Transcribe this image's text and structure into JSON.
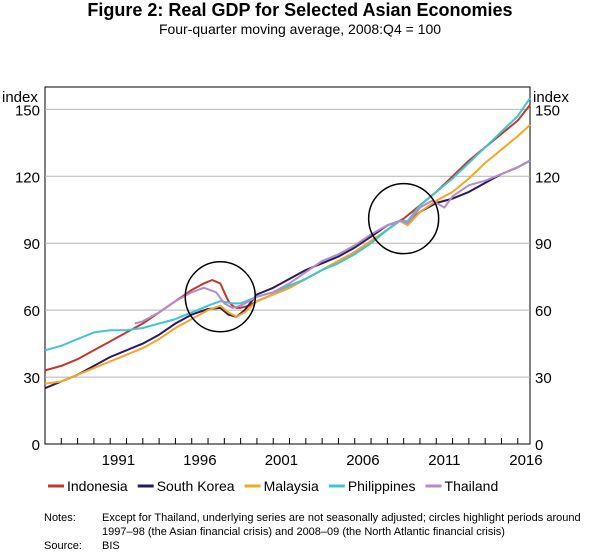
{
  "chart_data": {
    "type": "line",
    "title": "Figure 2: Real GDP for Selected Asian Economies",
    "subtitle": "Four-quarter moving average, 2008:Q4 = 100",
    "ylabel_left": "index",
    "ylabel_right": "index",
    "ylim": [
      0,
      160
    ],
    "y_ticks": [
      0,
      30,
      60,
      90,
      120,
      150
    ],
    "y_tick_labels": [
      "0",
      "30",
      "60",
      "90",
      "120",
      "150"
    ],
    "xlim": [
      1987.0,
      2016.75
    ],
    "x_ticks": [
      1991,
      1996,
      2001,
      2006,
      2011,
      2016
    ],
    "x_tick_labels": [
      "1991",
      "1996",
      "2001",
      "2006",
      "2011",
      "2016"
    ],
    "series": [
      {
        "name": "Indonesia",
        "color": "#c0392b",
        "x": [
          1987.0,
          1988.0,
          1989.0,
          1990.0,
          1991.0,
          1992.0,
          1993.0,
          1994.0,
          1995.0,
          1996.0,
          1996.75,
          1997.25,
          1997.75,
          1998.0,
          1998.25,
          1998.5,
          1998.75,
          1999.0,
          1999.5,
          2000.0,
          2001.0,
          2002.0,
          2003.0,
          2004.0,
          2005.0,
          2006.0,
          2007.0,
          2008.0,
          2008.75,
          2009.0,
          2010.0,
          2011.0,
          2012.0,
          2013.0,
          2014.0,
          2015.0,
          2016.0,
          2016.75
        ],
        "values": [
          33,
          35,
          38,
          42,
          46,
          50,
          54,
          59,
          64,
          69,
          72,
          73.5,
          72,
          68,
          64,
          62,
          61,
          61,
          62,
          64,
          67,
          70,
          74,
          78,
          82,
          86,
          91,
          96,
          100,
          101,
          107,
          113,
          120,
          127,
          133,
          139,
          145,
          152
        ]
      },
      {
        "name": "South Korea",
        "color": "#2c1a5e",
        "x": [
          1987.0,
          1988.0,
          1989.0,
          1990.0,
          1991.0,
          1992.0,
          1993.0,
          1994.0,
          1995.0,
          1996.0,
          1997.0,
          1997.75,
          1998.25,
          1998.75,
          1999.25,
          2000.0,
          2001.0,
          2002.0,
          2003.0,
          2004.0,
          2005.0,
          2006.0,
          2007.0,
          2008.0,
          2008.75,
          2009.25,
          2010.0,
          2011.0,
          2012.0,
          2013.0,
          2014.0,
          2015.0,
          2016.0,
          2016.75
        ],
        "values": [
          25,
          28,
          31,
          35,
          39,
          42,
          45,
          49,
          54,
          58,
          60.5,
          61,
          58,
          57,
          60,
          67,
          70,
          74,
          78,
          81,
          84,
          88,
          93,
          98,
          100,
          99,
          104,
          108,
          110,
          113,
          117,
          121,
          124,
          127
        ]
      },
      {
        "name": "Malaysia",
        "color": "#f5a623",
        "x": [
          1987.0,
          1988.0,
          1989.0,
          1990.0,
          1991.0,
          1992.0,
          1993.0,
          1994.0,
          1995.0,
          1996.0,
          1997.0,
          1997.75,
          1998.25,
          1998.75,
          1999.25,
          2000.0,
          2001.0,
          2002.0,
          2003.0,
          2004.0,
          2005.0,
          2006.0,
          2007.0,
          2008.0,
          2008.75,
          2009.25,
          2010.0,
          2011.0,
          2012.0,
          2013.0,
          2014.0,
          2015.0,
          2016.0,
          2016.75
        ],
        "values": [
          27,
          28,
          31,
          34,
          37,
          40,
          43,
          47,
          52,
          56,
          60,
          62,
          59,
          57,
          59,
          64,
          67,
          70,
          74,
          78,
          82,
          86,
          91,
          96,
          100,
          98,
          104,
          109,
          113,
          119,
          126,
          132,
          138,
          143
        ]
      },
      {
        "name": "Philippines",
        "color": "#3ec6d4",
        "x": [
          1987.0,
          1988.0,
          1989.0,
          1990.0,
          1991.0,
          1992.0,
          1993.0,
          1994.0,
          1995.0,
          1996.0,
          1997.0,
          1997.75,
          1998.5,
          1999.0,
          2000.0,
          2001.0,
          2002.0,
          2003.0,
          2004.0,
          2005.0,
          2006.0,
          2007.0,
          2008.0,
          2008.75,
          2009.25,
          2010.0,
          2011.0,
          2012.0,
          2013.0,
          2014.0,
          2015.0,
          2016.0,
          2016.75
        ],
        "values": [
          42,
          44,
          47,
          50,
          51,
          51,
          52,
          54,
          56,
          59,
          62,
          64,
          63,
          63,
          66,
          68,
          71,
          74,
          78,
          81,
          85,
          90,
          96,
          100,
          100,
          107,
          113,
          119,
          126,
          133,
          140,
          147,
          155
        ]
      },
      {
        "name": "Thailand",
        "color": "#b48cc8",
        "x": [
          1992.5,
          1993.0,
          1994.0,
          1995.0,
          1996.0,
          1996.75,
          1997.5,
          1998.0,
          1998.5,
          1999.0,
          1999.5,
          2000.0,
          2001.0,
          2002.0,
          2003.0,
          2004.0,
          2005.0,
          2006.0,
          2007.0,
          2008.0,
          2008.75,
          2009.25,
          2010.0,
          2010.75,
          2011.5,
          2012.0,
          2013.0,
          2014.0,
          2015.0,
          2016.0,
          2016.75
        ],
        "values": [
          54,
          55,
          59,
          64,
          68,
          70,
          68,
          63,
          61,
          62,
          64,
          66,
          68,
          72,
          77,
          82,
          85,
          89,
          94,
          98,
          100,
          99,
          106,
          109,
          106,
          111,
          116,
          118,
          121,
          124,
          127
        ]
      }
    ],
    "annotations": [
      {
        "name": "asian-financial-crisis-circle",
        "x": 1997.75,
        "y": 66
      },
      {
        "name": "north-atlantic-financial-crisis-circle",
        "x": 2009.0,
        "y": 101
      }
    ]
  },
  "notes": {
    "notes_label": "Notes:",
    "notes_text": "Except for Thailand, underlying series are not seasonally adjusted; circles highlight periods around 1997–98 (the Asian financial crisis) and 2008–09 (the North Atlantic financial crisis)",
    "source_label": "Source:",
    "source_text": "BIS"
  }
}
